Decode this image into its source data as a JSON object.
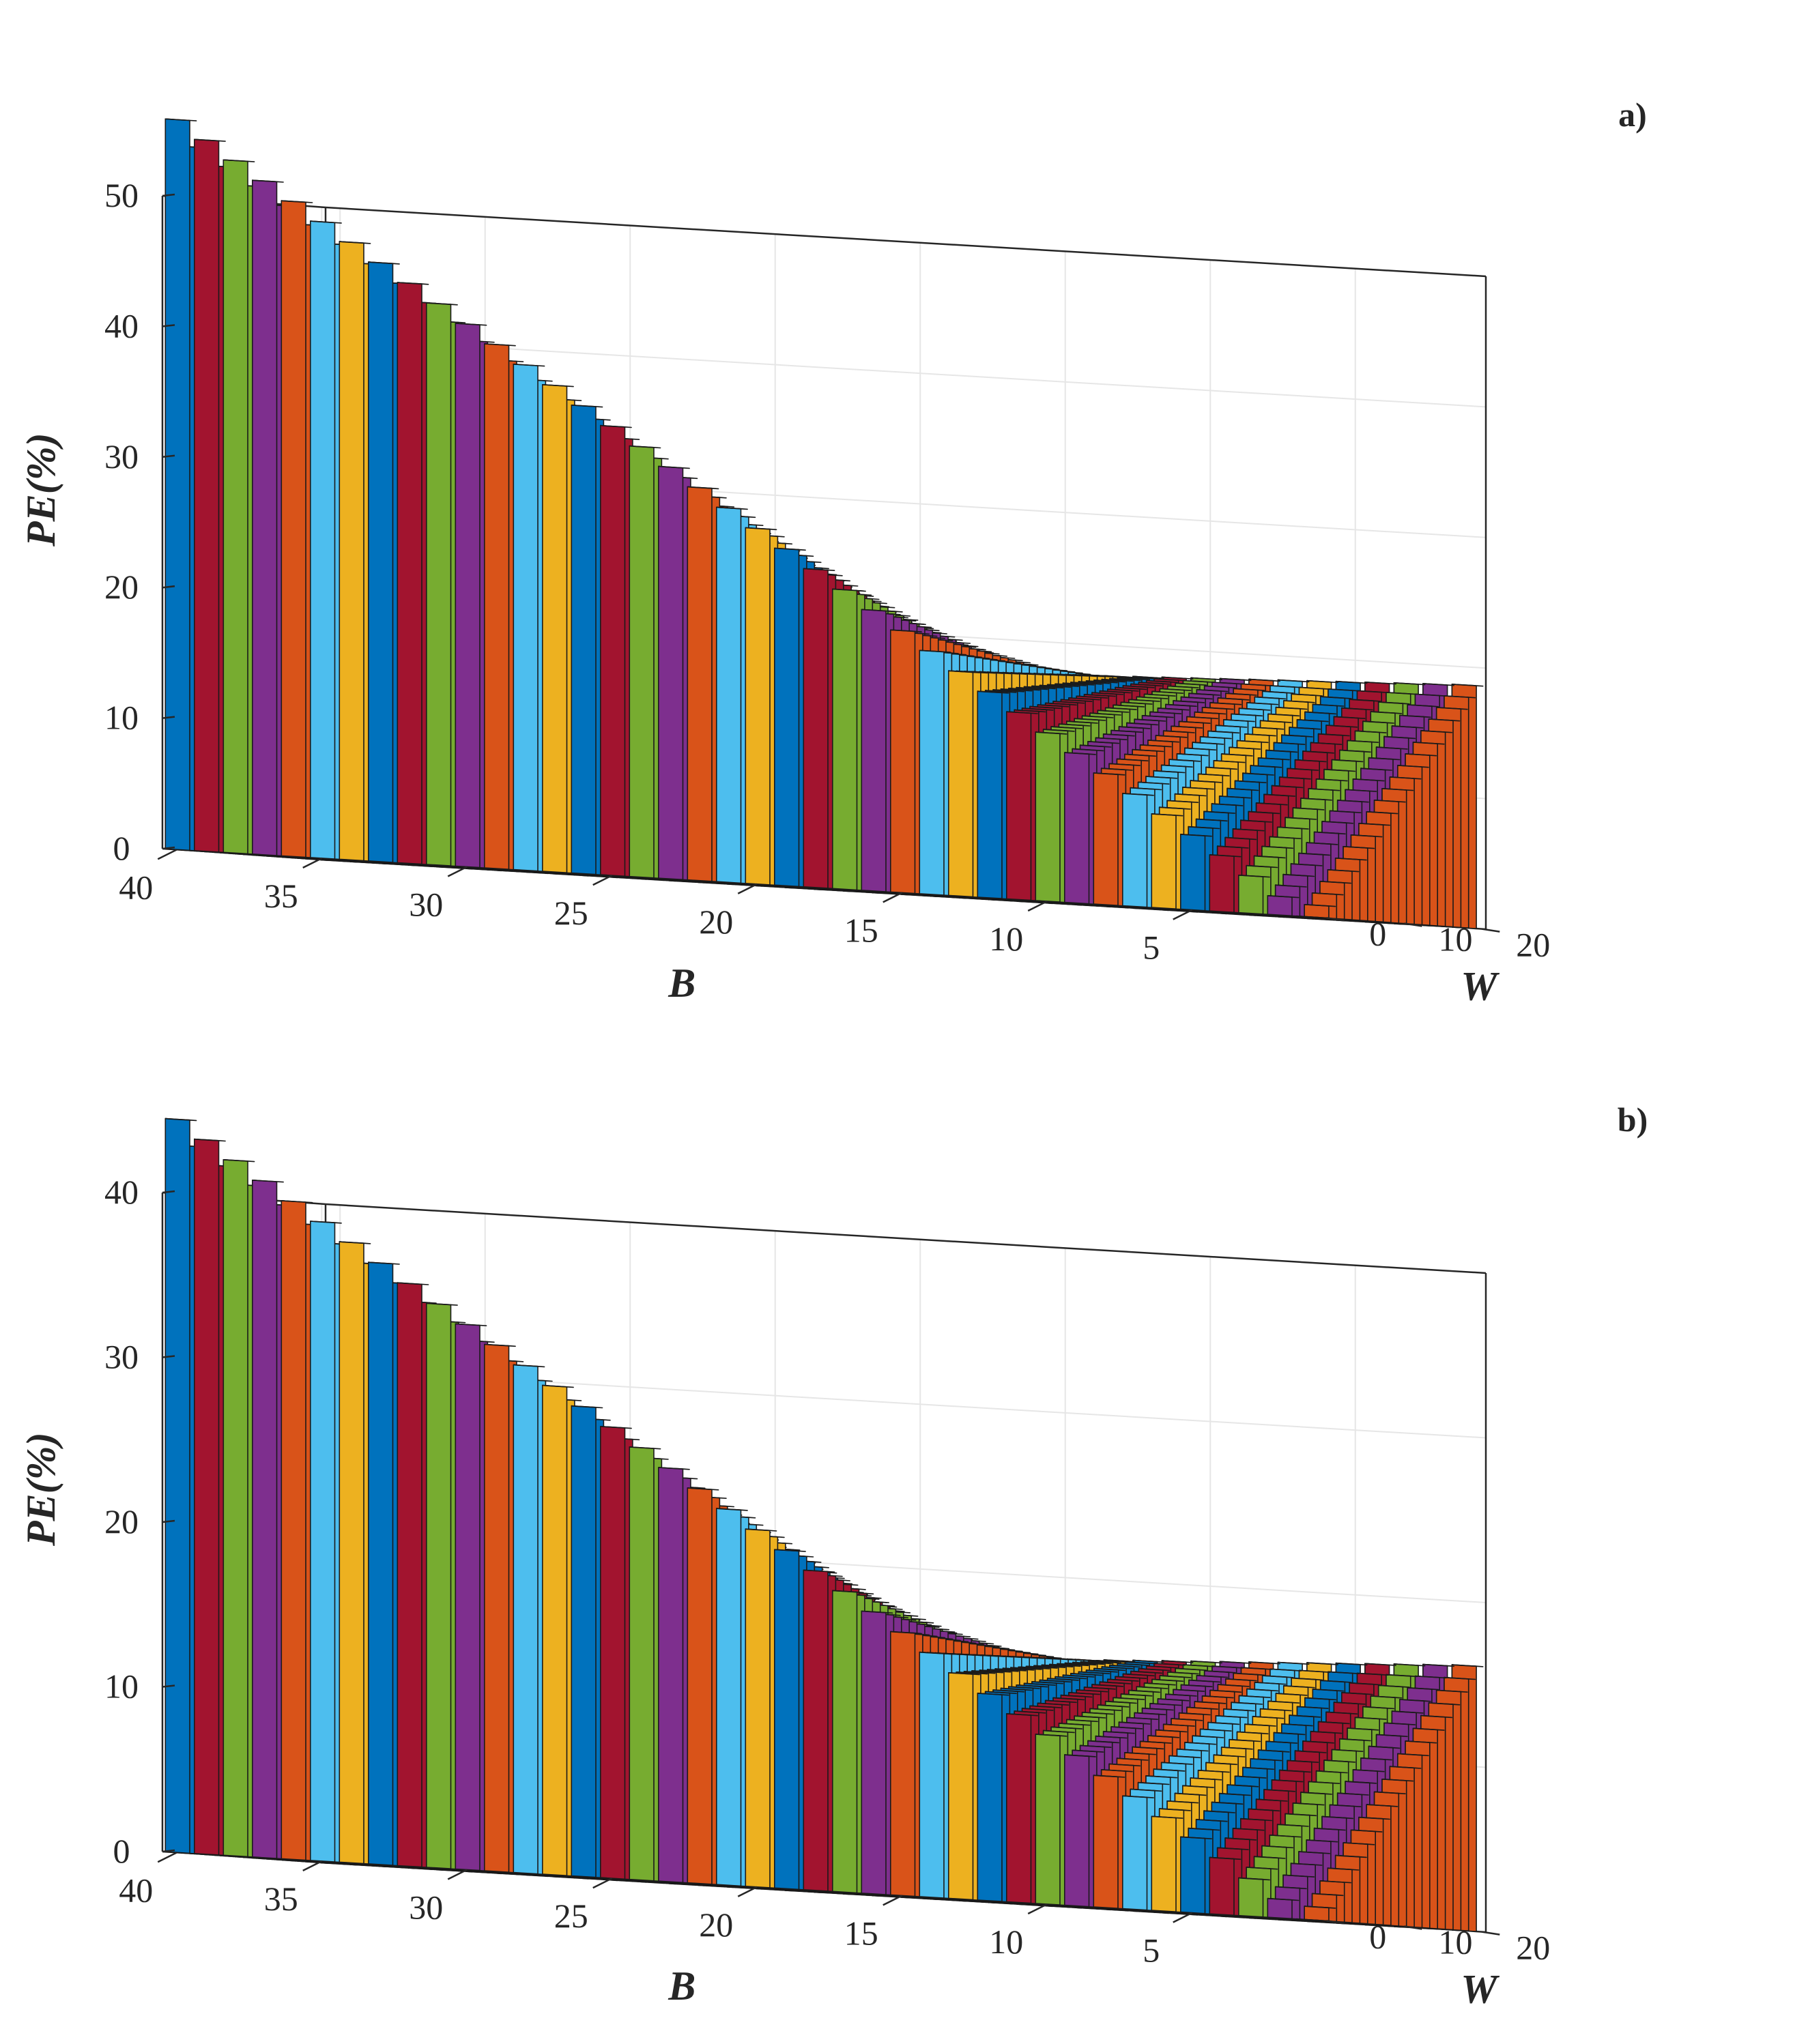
{
  "chart_data": [
    {
      "type": "bar3d",
      "panel_label": "a)",
      "zlabel": "PE(%)",
      "xlabel": "B",
      "ylabel": "W",
      "x_ticks": [
        "40",
        "35",
        "30",
        "25",
        "20",
        "15",
        "10",
        "5"
      ],
      "y_ticks": [
        "0",
        "10",
        "20"
      ],
      "z_ticks": [
        "0",
        "10",
        "20",
        "30",
        "40",
        "50"
      ],
      "x_range": [
        1,
        40
      ],
      "y_range": [
        0,
        20
      ],
      "zlim": [
        0,
        50
      ],
      "B_max": 40,
      "W_max": 20,
      "peak_value": 55.9,
      "front_row_at_W0": 15.6,
      "back_row_at_B1": 18.6,
      "grid": true
    },
    {
      "type": "bar3d",
      "panel_label": "b)",
      "zlabel": "PE(%)",
      "xlabel": "B",
      "ylabel": "W",
      "x_ticks": [
        "40",
        "35",
        "30",
        "25",
        "20",
        "15",
        "10",
        "5"
      ],
      "y_ticks": [
        "0",
        "10",
        "20"
      ],
      "z_ticks": [
        "0",
        "10",
        "20",
        "30",
        "40"
      ],
      "x_range": [
        1,
        40
      ],
      "y_range": [
        0,
        20
      ],
      "zlim": [
        0,
        40
      ],
      "B_max": 40,
      "W_max": 20,
      "peak_value": 44.5,
      "front_row_at_W0": 13,
      "back_row_at_B1": 16.1,
      "grid": true
    }
  ],
  "series_colors": [
    "#0072BD",
    "#A2142F",
    "#77AC30",
    "#7E2F8E",
    "#D95319",
    "#4DBEEE",
    "#EDB120"
  ],
  "edge_color": "#1a1a1a"
}
